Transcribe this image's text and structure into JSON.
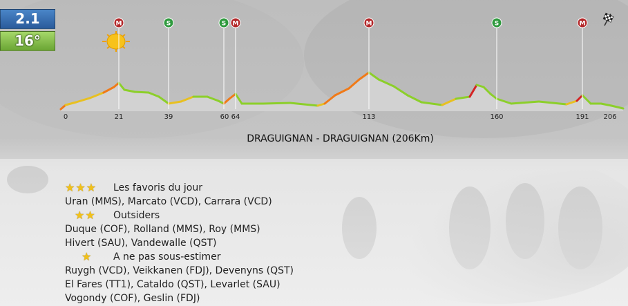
{
  "stage": {
    "number": "2.1",
    "temperature": "16°"
  },
  "route": "DRAGUIGNAN - DRAGUIGNAN (206Km)",
  "profile": {
    "markers": [
      {
        "km": 21,
        "type": "M"
      },
      {
        "km": 39,
        "type": "S"
      },
      {
        "km": 60,
        "type": "S"
      },
      {
        "km": 64,
        "type": "M"
      },
      {
        "km": 113,
        "type": "M"
      },
      {
        "km": 160,
        "type": "S"
      },
      {
        "km": 191,
        "type": "M"
      }
    ],
    "km_labels": [
      "0",
      "21",
      "39",
      "60",
      "64",
      "113",
      "160",
      "191",
      "206"
    ],
    "colors": {
      "M": "#b3282a",
      "S": "#2f9a3e"
    }
  },
  "favorites": {
    "heading": "Les favoris du jour",
    "stars": 3,
    "riders": [
      "Uran (MMS), Marcato (VCD), Carrara (VCD)"
    ]
  },
  "outsiders": {
    "heading": "Outsiders",
    "stars": 2,
    "riders": [
      "Duque (COF), Rolland (MMS), Roy (MMS)",
      "Hivert (SAU), Vandewalle (QST)"
    ]
  },
  "underestimate": {
    "heading": "A ne pas sous-estimer",
    "stars": 1,
    "riders": [
      "Ruygh (VCD), Veikkanen (FDJ), Devenyns (QST)",
      "El Fares (TT1), Cataldo (QST), Levarlet (SAU)",
      "Vogondy (COF), Geslin (FDJ)"
    ]
  }
}
